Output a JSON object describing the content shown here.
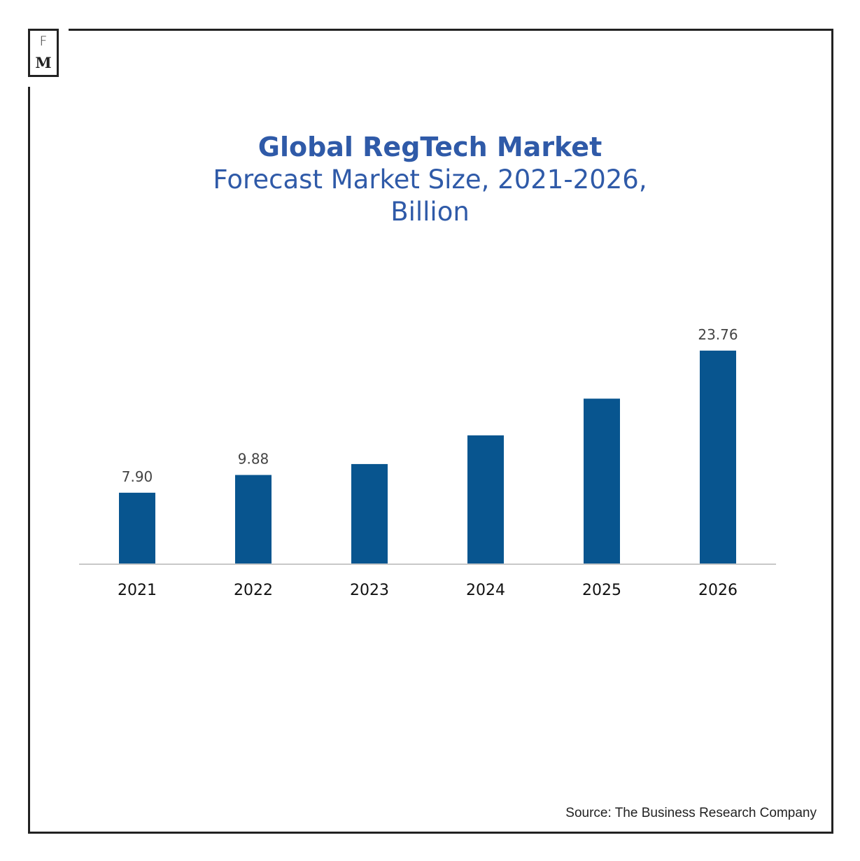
{
  "logo": {
    "top_letter": "F",
    "bottom_letter": "M"
  },
  "chart_data": {
    "type": "bar",
    "title": "Global RegTech Market",
    "subtitle": "Forecast Market Size, 2021-2026, Billion",
    "categories": [
      "2021",
      "2022",
      "2023",
      "2024",
      "2025",
      "2026"
    ],
    "values": [
      7.9,
      9.88,
      11.1,
      14.3,
      18.4,
      23.76
    ],
    "value_labels": [
      "7.90",
      "9.88",
      "",
      "",
      "",
      "23.76"
    ],
    "xlabel": "",
    "ylabel": "",
    "ylim": [
      0,
      30
    ],
    "grid": false,
    "legend": "none",
    "bar_color": "#08558f",
    "axis_color": "#c8c8c8"
  },
  "title_color": "#2f5aa8",
  "source": "Source: The Business Research Company"
}
